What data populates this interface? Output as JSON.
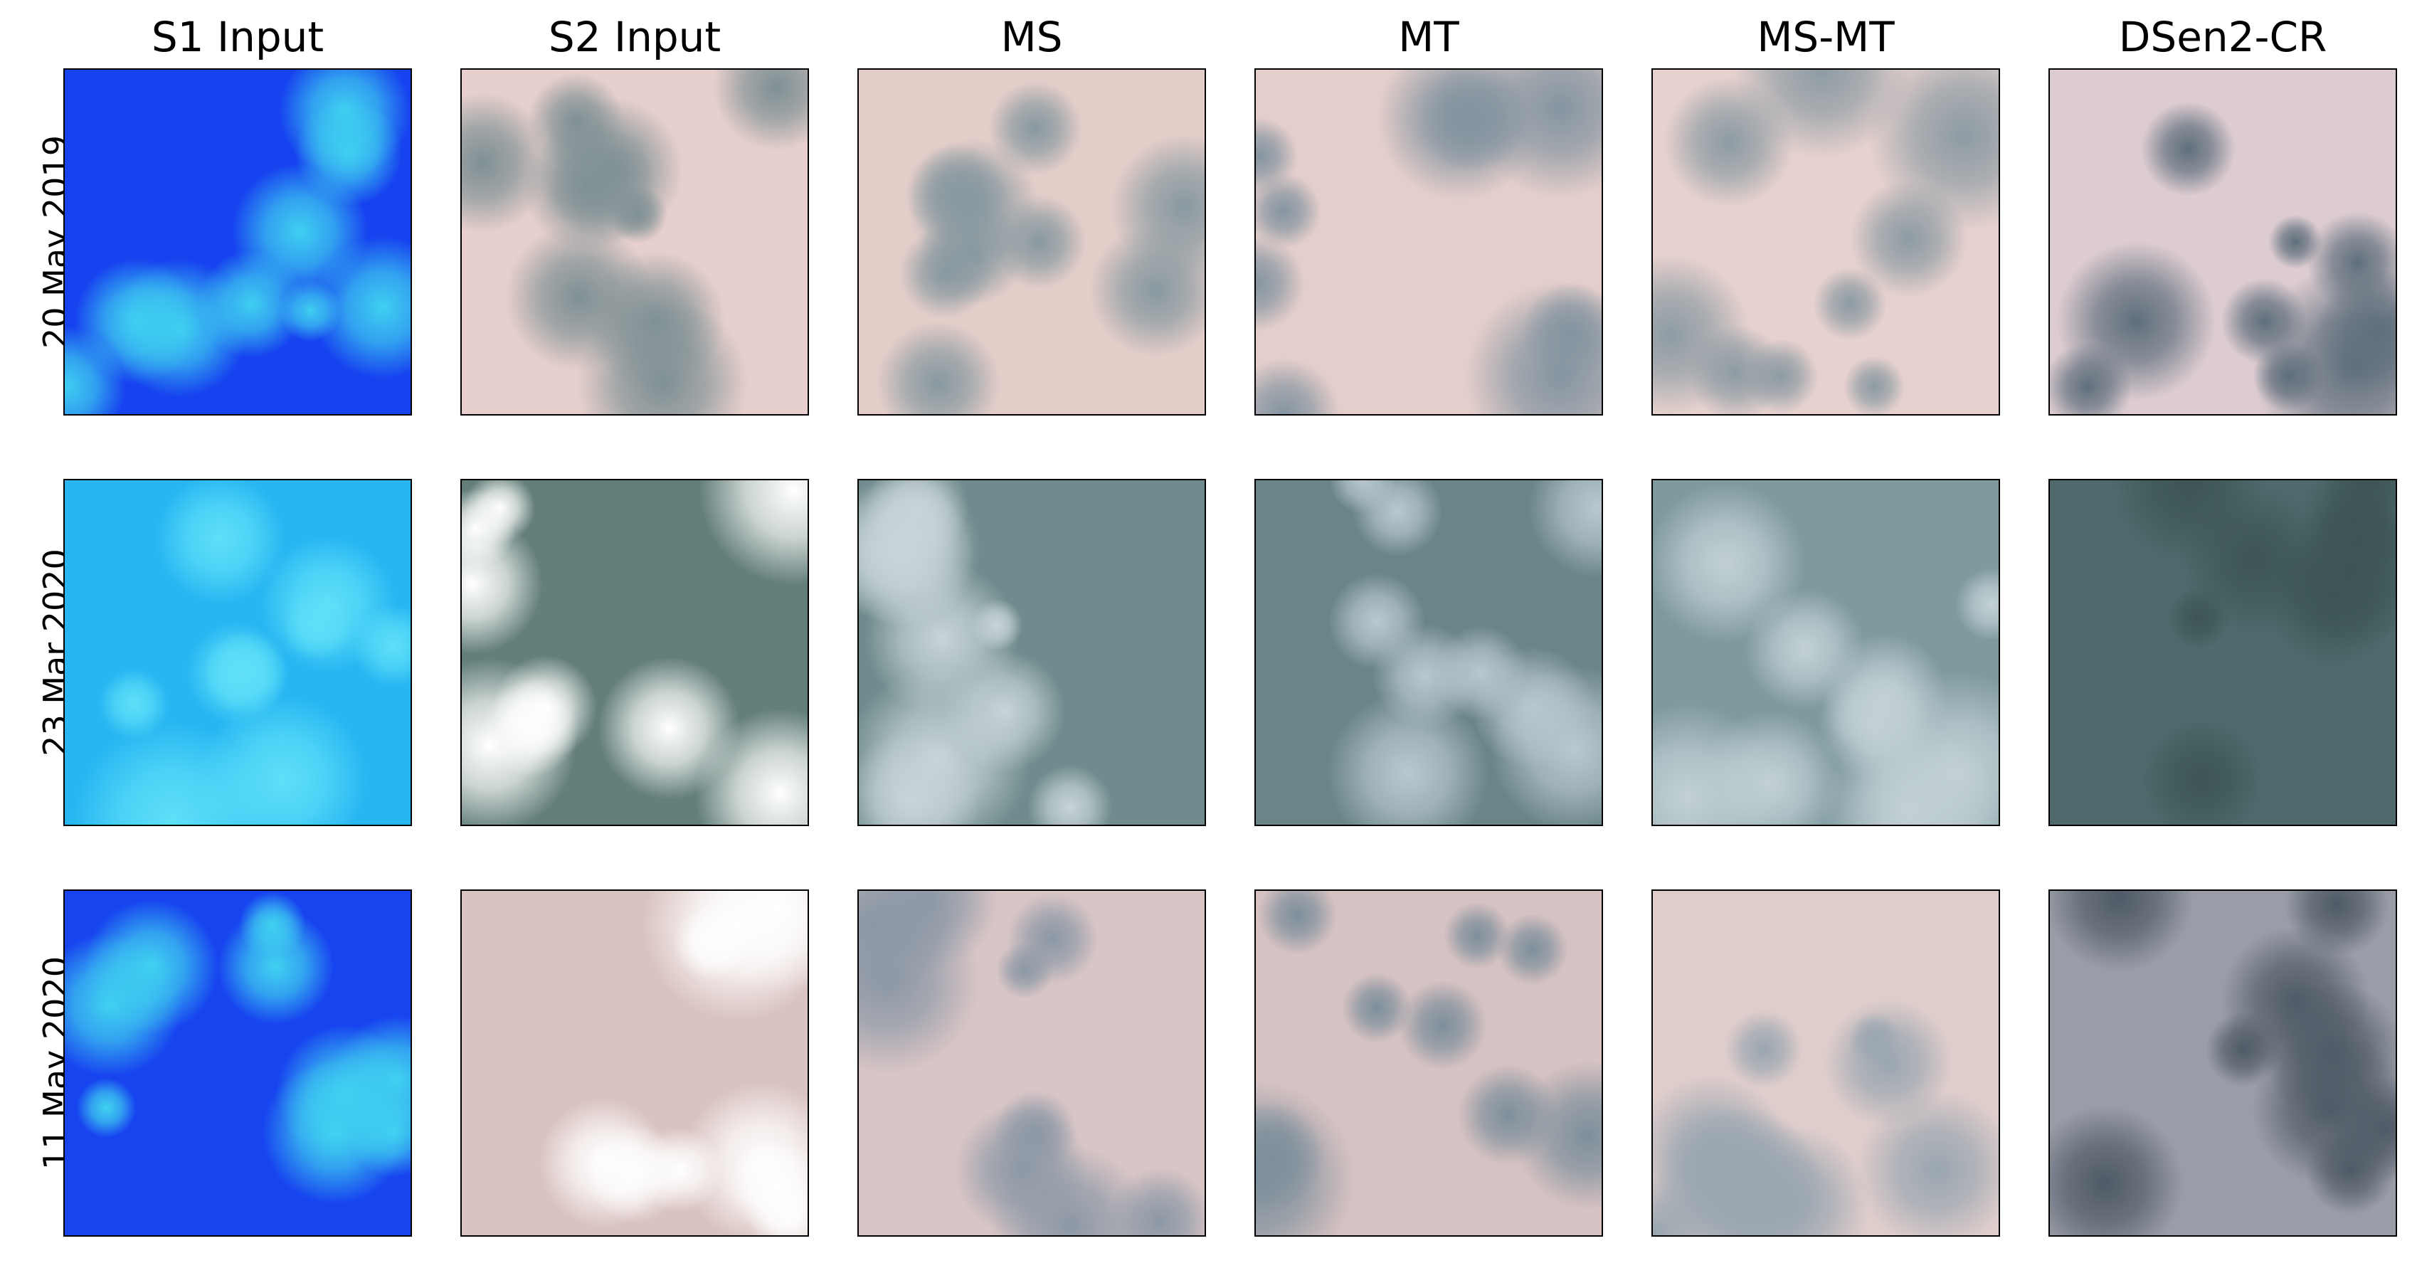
{
  "columns": [
    "S1 Input",
    "S2 Input",
    "MS",
    "MT",
    "MS-MT",
    "DSen2-CR"
  ],
  "rows": [
    "20 May 2019",
    "23 Mar 2020",
    "11 May 2020"
  ]
}
